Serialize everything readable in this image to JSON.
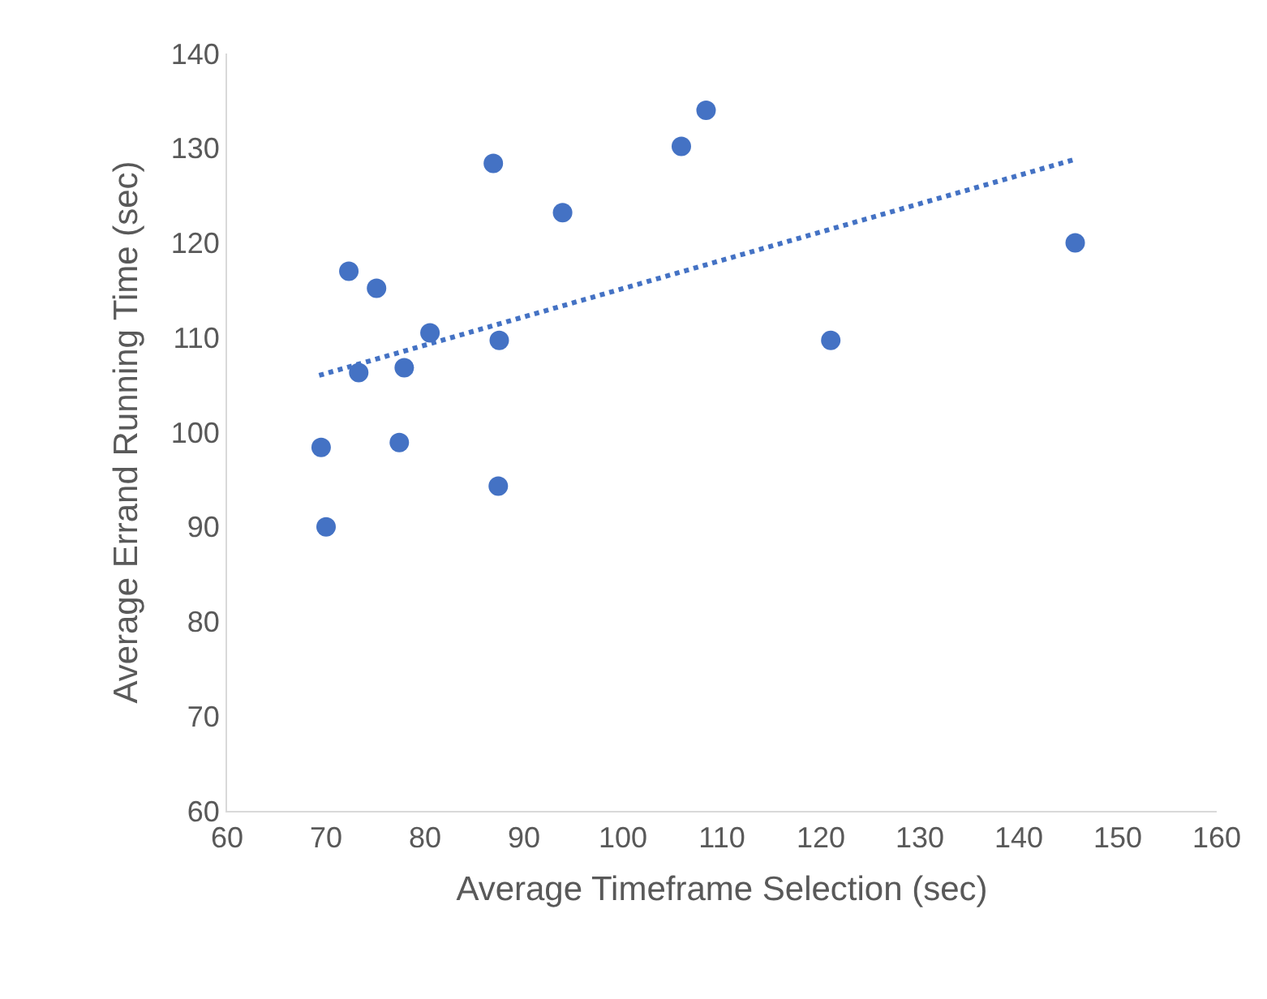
{
  "chart_data": {
    "type": "scatter",
    "xlabel": "Average Timeframe Selection (sec)",
    "ylabel": "Average Errand Running Time (sec)",
    "xlim": [
      60,
      160
    ],
    "xticks": [
      60,
      70,
      80,
      90,
      100,
      110,
      120,
      130,
      140,
      150,
      160
    ],
    "ylim": [
      60,
      140
    ],
    "yticks": [
      60,
      70,
      80,
      90,
      100,
      110,
      120,
      130,
      140
    ],
    "grid": false,
    "legend": false,
    "marker": "circle",
    "series": [
      {
        "color": "#4472c4",
        "x": [
          69.5,
          70.0,
          72.3,
          73.3,
          75.1,
          77.4,
          77.9,
          80.5,
          86.9,
          87.5,
          87.4,
          93.9,
          105.9,
          108.4,
          121.0,
          145.7
        ],
        "values": [
          98.4,
          90.0,
          117.0,
          106.3,
          115.2,
          98.9,
          106.8,
          110.5,
          128.4,
          109.7,
          94.3,
          123.2,
          130.2,
          134.0,
          109.7,
          120.0
        ]
      },
      {
        "type": "line",
        "color": "#4472c4",
        "line_style": "dotted",
        "marker": "none",
        "x": [
          69.3,
          145.6
        ],
        "values": [
          106.0,
          128.8
        ]
      }
    ]
  }
}
